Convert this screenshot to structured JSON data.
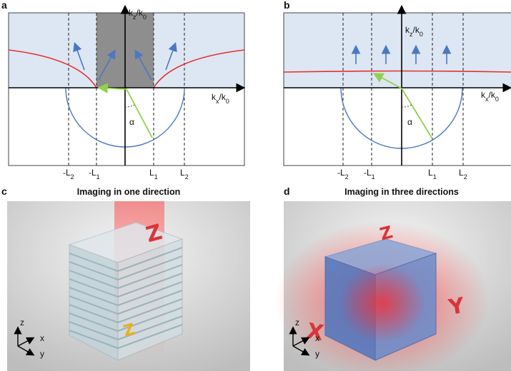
{
  "panels": [
    {
      "label": "a",
      "vertical_axis": [
        {
          "text": "k"
        },
        {
          "text": "z",
          "sub": true
        },
        {
          "text": "/k"
        },
        {
          "text": "0",
          "sub": true
        }
      ],
      "horizontal_axis": [
        {
          "text": "k"
        },
        {
          "text": "x",
          "sub": true
        },
        {
          "text": "/k"
        },
        {
          "text": "0",
          "sub": true
        }
      ],
      "angle": "α",
      "ticks": [
        [
          {
            "text": "-L"
          },
          {
            "text": "2",
            "sub": true
          }
        ],
        [
          {
            "text": "-L"
          },
          {
            "text": "1",
            "sub": true
          }
        ],
        [
          {
            "text": "L"
          },
          {
            "text": "1",
            "sub": true
          }
        ],
        [
          {
            "text": "L"
          },
          {
            "text": "2",
            "sub": true
          }
        ]
      ]
    },
    {
      "label": "b",
      "vertical_axis": [
        {
          "text": "k"
        },
        {
          "text": "z",
          "sub": true
        },
        {
          "text": "/k"
        },
        {
          "text": "0",
          "sub": true
        }
      ],
      "horizontal_axis": [
        {
          "text": "k"
        },
        {
          "text": "x",
          "sub": true
        },
        {
          "text": "/k"
        },
        {
          "text": "0",
          "sub": true
        }
      ],
      "angle": "α",
      "ticks": [
        [
          {
            "text": "-L"
          },
          {
            "text": "2",
            "sub": true
          }
        ],
        [
          {
            "text": "-L"
          },
          {
            "text": "1",
            "sub": true
          }
        ],
        [
          {
            "text": "L"
          },
          {
            "text": "1",
            "sub": true
          }
        ],
        [
          {
            "text": "L"
          },
          {
            "text": "2",
            "sub": true
          }
        ]
      ]
    },
    {
      "label": "c",
      "title": "Imaging in one direction",
      "letters": [
        "Z",
        "Z"
      ],
      "axes": [
        "z",
        "x",
        "y"
      ]
    },
    {
      "label": "d",
      "title": "Imaging in three directions",
      "letters": [
        "Z",
        "X",
        "Y"
      ],
      "axes": [
        "z",
        "x",
        "y"
      ]
    }
  ]
}
